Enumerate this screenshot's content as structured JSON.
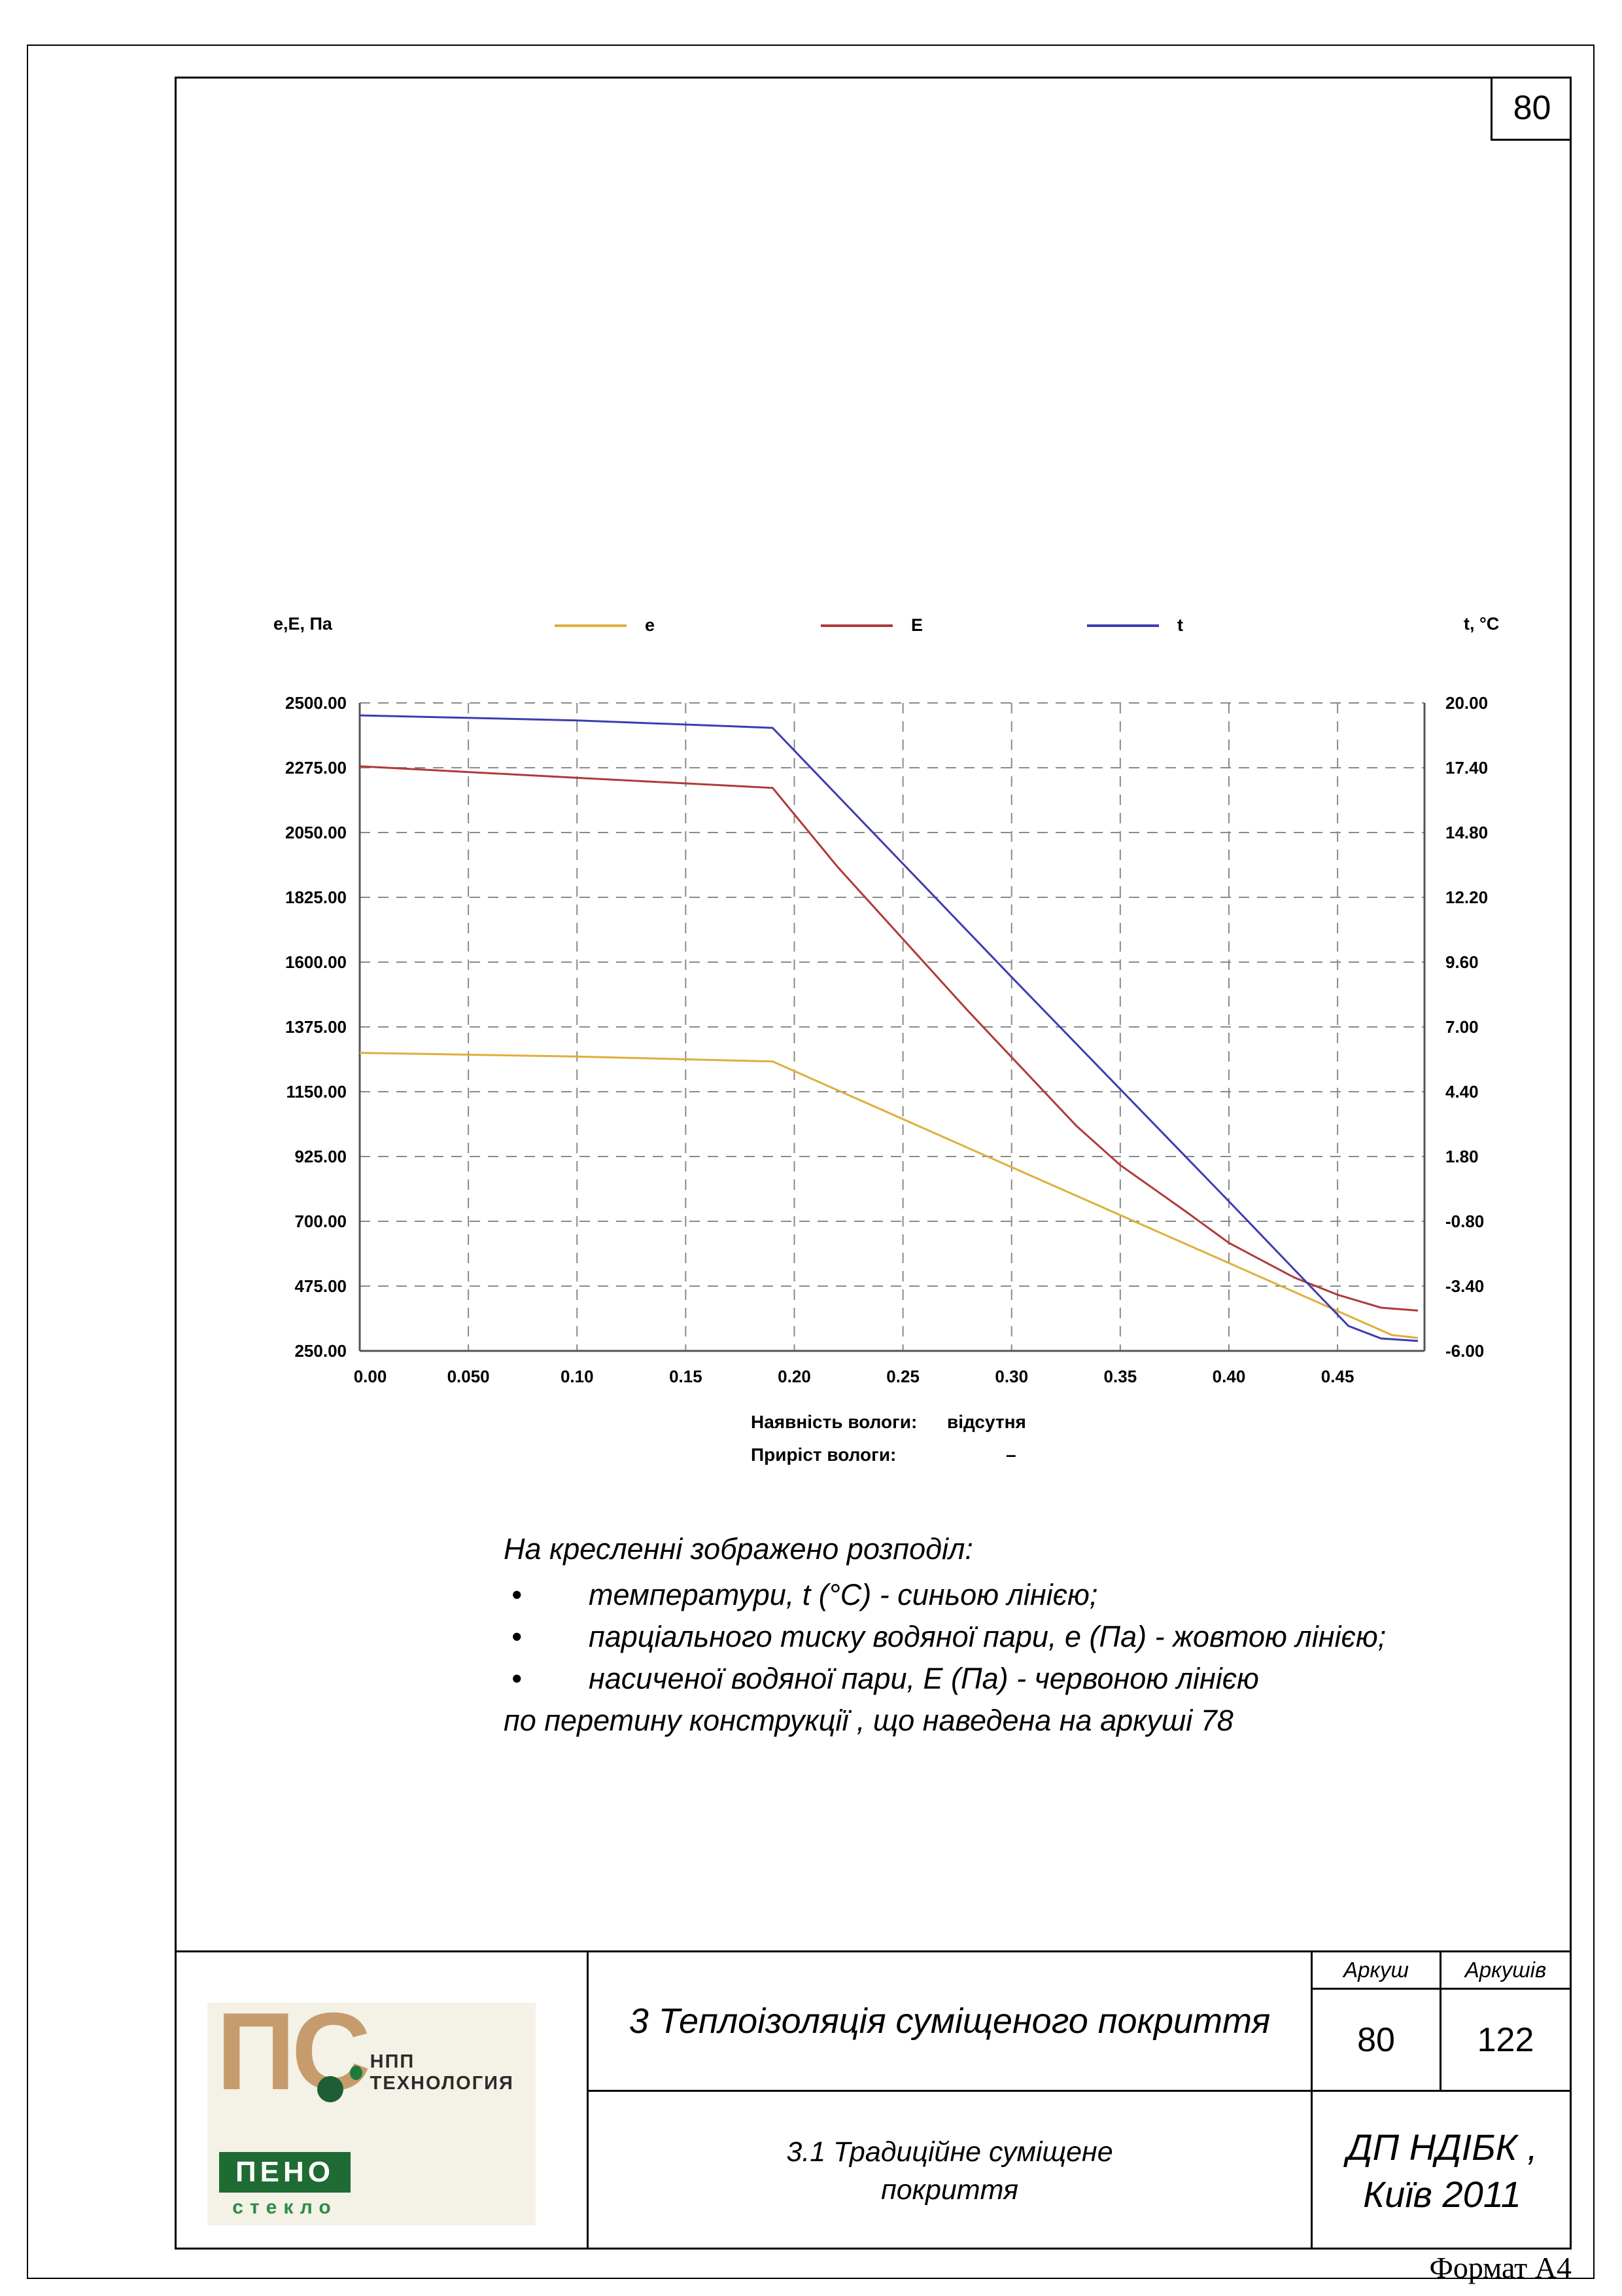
{
  "page": {
    "number": "80",
    "format": "Формат А4"
  },
  "chart": {
    "left_axis_title": "е,Е, Па",
    "right_axis_title": "t, °C",
    "legend": [
      {
        "label": "e",
        "color": "#DFAE3C"
      },
      {
        "label": "E",
        "color": "#AE3B3B"
      },
      {
        "label": "t",
        "color": "#3C3CB4"
      }
    ],
    "moisture": {
      "label": "Наявність вологи:",
      "value": "відсутня"
    },
    "moisture_gain": {
      "label": "Приріст вологи:",
      "value": "–"
    }
  },
  "chart_data": {
    "type": "line",
    "grid": true,
    "legend_position": "top",
    "x_range": [
      0,
      0.49
    ],
    "x_ticks": [
      0,
      0.05,
      0.1,
      0.15,
      0.2,
      0.25,
      0.3,
      0.35,
      0.4,
      0.45
    ],
    "x_tick_labels": [
      "0.00",
      "0.050",
      "0.10",
      "0.15",
      "0.20",
      "0.25",
      "0.30",
      "0.35",
      "0.40",
      "0.45"
    ],
    "left_axis": {
      "title": "е,Е, Па",
      "range": [
        250,
        2500
      ],
      "ticks": [
        2500,
        2275,
        2050,
        1825,
        1600,
        1375,
        1150,
        925,
        700,
        475,
        250
      ],
      "tick_labels": [
        "2500.00",
        "2275.00",
        "2050.00",
        "1825.00",
        "1600.00",
        "1375.00",
        "1150.00",
        "925.00",
        "700.00",
        "475.00",
        "250.00"
      ]
    },
    "right_axis": {
      "title": "t, °C",
      "range": [
        -6,
        20
      ],
      "ticks": [
        20,
        17.4,
        14.8,
        12.2,
        9.6,
        7,
        4.4,
        1.8,
        -0.8,
        -3.4,
        -6
      ],
      "tick_labels": [
        "20.00",
        "17.40",
        "14.80",
        "12.20",
        "9.60",
        "7.00",
        "4.40",
        "1.80",
        "-0.80",
        "-3.40",
        "-6.00"
      ]
    },
    "series": [
      {
        "name": "e",
        "axis": "left",
        "color": "#DFAE3C",
        "points": [
          [
            0,
            1285
          ],
          [
            0.1,
            1272
          ],
          [
            0.19,
            1255
          ],
          [
            0.3,
            888
          ],
          [
            0.4,
            555
          ],
          [
            0.475,
            305
          ],
          [
            0.487,
            295
          ]
        ]
      },
      {
        "name": "E",
        "axis": "left",
        "color": "#AE3B3B",
        "points": [
          [
            0,
            2280
          ],
          [
            0.1,
            2240
          ],
          [
            0.19,
            2205
          ],
          [
            0.22,
            1930
          ],
          [
            0.25,
            1680
          ],
          [
            0.28,
            1430
          ],
          [
            0.3,
            1270
          ],
          [
            0.33,
            1030
          ],
          [
            0.35,
            895
          ],
          [
            0.38,
            735
          ],
          [
            0.4,
            625
          ],
          [
            0.43,
            505
          ],
          [
            0.45,
            445
          ],
          [
            0.47,
            400
          ],
          [
            0.487,
            390
          ]
        ]
      },
      {
        "name": "t",
        "axis": "right",
        "color": "#3C3CB4",
        "points": [
          [
            0,
            19.5
          ],
          [
            0.1,
            19.3
          ],
          [
            0.19,
            19.0
          ],
          [
            0.3,
            9.0
          ],
          [
            0.4,
            0.0
          ],
          [
            0.455,
            -5.0
          ],
          [
            0.47,
            -5.5
          ],
          [
            0.487,
            -5.6
          ]
        ]
      }
    ]
  },
  "description": {
    "intro": "На кресленні зображено розподіл:",
    "bullets": [
      "температури, t (°C) - синьою лінією;",
      "парціального тиску водяної пари, е (Па) - жовтою лінією;",
      "насиченої водяної пари, Е (Па) - червоною лінією"
    ],
    "outro": "по перетину конструкції , що наведена на аркуші 78"
  },
  "title_block": {
    "main_title": "3 Теплоізоляція суміщеного покриття",
    "subtitle_line1": "3.1 Традиційне суміщене",
    "subtitle_line2": "покриття",
    "sheet_label": "Аркуш",
    "sheets_label": "Аркушів",
    "sheet_number": "80",
    "sheets_total": "122",
    "org_line1": "ДП НДІБК ,",
    "org_line2": "Київ 2011",
    "logo": {
      "monogram": "ПС",
      "company": "НПП  ТЕХНОЛОГИЯ",
      "brand_line1": "ПЕНО",
      "brand_line2": "стекло"
    }
  }
}
